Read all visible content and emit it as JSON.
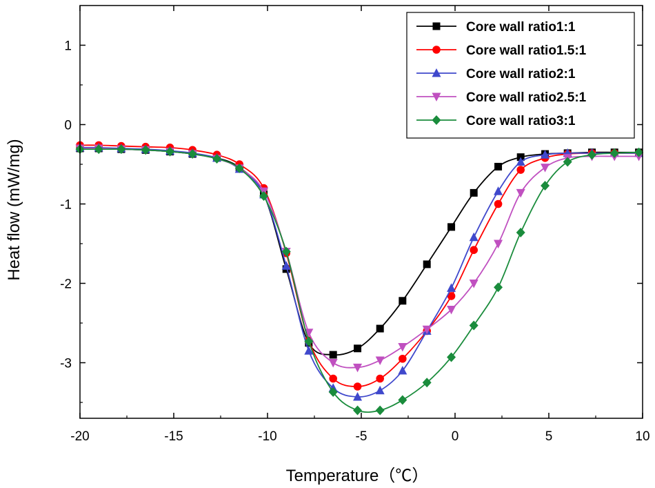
{
  "chart_data": {
    "type": "line",
    "title": "",
    "xlabel": "Temperature（℃）",
    "ylabel": "Heat flow (mW/mg)",
    "xlim": [
      -20,
      10
    ],
    "ylim": [
      -3.7,
      1.5
    ],
    "xticks": [
      -20,
      -15,
      -10,
      -5,
      0,
      5,
      10
    ],
    "yticks": [
      1,
      0,
      -1,
      -2,
      -3
    ],
    "legend_position": "top-right",
    "series": [
      {
        "name": "Core wall ratio1:1",
        "color": "#000000",
        "marker": "square",
        "x": [
          -20,
          -19,
          -17.8,
          -16.5,
          -15.2,
          -14,
          -12.7,
          -11.5,
          -10.2,
          -9,
          -7.8,
          -6.5,
          -5.2,
          -4,
          -2.8,
          -1.5,
          -0.2,
          1,
          2.3,
          3.5,
          4.8,
          6,
          7.3,
          8.5,
          9.8
        ],
        "y": [
          -0.3,
          -0.3,
          -0.31,
          -0.32,
          -0.34,
          -0.37,
          -0.42,
          -0.54,
          -0.88,
          -1.82,
          -2.75,
          -2.9,
          -2.82,
          -2.57,
          -2.22,
          -1.76,
          -1.29,
          -0.86,
          -0.53,
          -0.41,
          -0.37,
          -0.36,
          -0.35,
          -0.35,
          -0.35
        ]
      },
      {
        "name": "Core wall ratio1.5:1",
        "color": "#ff0000",
        "marker": "circle",
        "x": [
          -20,
          -19,
          -17.8,
          -16.5,
          -15.2,
          -14,
          -12.7,
          -11.5,
          -10.2,
          -9,
          -7.8,
          -6.5,
          -5.2,
          -4,
          -2.8,
          -1.5,
          -0.2,
          1,
          2.3,
          3.5,
          4.8,
          6,
          7.3,
          8.5,
          9.8
        ],
        "y": [
          -0.26,
          -0.26,
          -0.27,
          -0.28,
          -0.29,
          -0.32,
          -0.38,
          -0.5,
          -0.8,
          -1.62,
          -2.72,
          -3.2,
          -3.3,
          -3.2,
          -2.95,
          -2.6,
          -2.16,
          -1.58,
          -1.0,
          -0.57,
          -0.42,
          -0.37,
          -0.36,
          -0.36,
          -0.36
        ]
      },
      {
        "name": "Core wall ratio2:1",
        "color": "#3f48cc",
        "marker": "triangle-up",
        "x": [
          -20,
          -19,
          -17.8,
          -16.5,
          -15.2,
          -14,
          -12.7,
          -11.5,
          -10.2,
          -9,
          -7.8,
          -6.5,
          -5.2,
          -4,
          -2.8,
          -1.5,
          -0.2,
          1,
          2.3,
          3.5,
          4.8,
          6,
          7.3,
          8.5,
          9.8
        ],
        "y": [
          -0.29,
          -0.29,
          -0.3,
          -0.31,
          -0.33,
          -0.36,
          -0.42,
          -0.56,
          -0.88,
          -1.78,
          -2.85,
          -3.32,
          -3.43,
          -3.35,
          -3.1,
          -2.6,
          -2.06,
          -1.42,
          -0.84,
          -0.47,
          -0.38,
          -0.36,
          -0.36,
          -0.36,
          -0.36
        ]
      },
      {
        "name": "Core wall ratio2.5:1",
        "color": "#c050c0",
        "marker": "triangle-down",
        "x": [
          -20,
          -19,
          -17.8,
          -16.5,
          -15.2,
          -14,
          -12.7,
          -11.5,
          -10.2,
          -9,
          -7.8,
          -6.5,
          -5.2,
          -4,
          -2.8,
          -1.5,
          -0.2,
          1,
          2.3,
          3.5,
          4.8,
          6,
          7.3,
          8.5,
          9.8
        ],
        "y": [
          -0.3,
          -0.3,
          -0.31,
          -0.32,
          -0.34,
          -0.37,
          -0.43,
          -0.55,
          -0.84,
          -1.6,
          -2.62,
          -3.0,
          -3.06,
          -2.97,
          -2.8,
          -2.58,
          -2.33,
          -2.0,
          -1.5,
          -0.86,
          -0.54,
          -0.42,
          -0.4,
          -0.4,
          -0.4
        ]
      },
      {
        "name": "Core wall ratio3:1",
        "color": "#1a8c3c",
        "marker": "diamond",
        "x": [
          -20,
          -19,
          -17.8,
          -16.5,
          -15.2,
          -14,
          -12.7,
          -11.5,
          -10.2,
          -9,
          -7.8,
          -6.5,
          -5.2,
          -4,
          -2.8,
          -1.5,
          -0.2,
          1,
          2.3,
          3.5,
          4.8,
          6,
          7.3,
          8.5,
          9.8
        ],
        "y": [
          -0.31,
          -0.31,
          -0.31,
          -0.32,
          -0.34,
          -0.37,
          -0.43,
          -0.55,
          -0.9,
          -1.6,
          -2.73,
          -3.37,
          -3.6,
          -3.6,
          -3.47,
          -3.25,
          -2.93,
          -2.53,
          -2.05,
          -1.36,
          -0.77,
          -0.47,
          -0.38,
          -0.36,
          -0.35
        ]
      }
    ]
  }
}
